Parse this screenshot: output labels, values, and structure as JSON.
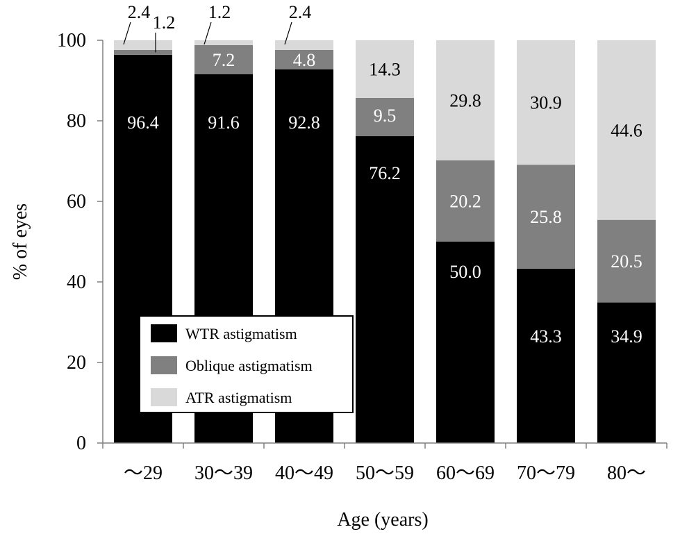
{
  "chart_data": {
    "type": "bar",
    "stacked": true,
    "xlabel": "Age (years)",
    "ylabel": "% of eyes",
    "ylim": [
      0,
      100
    ],
    "yticks": [
      0,
      20,
      40,
      60,
      80,
      100
    ],
    "grid": false,
    "legend_position": "bottom-left",
    "categories": [
      "～29",
      "30～39",
      "40～49",
      "50～59",
      "60～69",
      "70～79",
      "80～"
    ],
    "series": [
      {
        "name": "WTR  astigmatism",
        "color": "#000000",
        "label_color": "#ffffff",
        "values": [
          96.4,
          91.6,
          92.8,
          76.2,
          50.0,
          43.3,
          34.9
        ],
        "labels": [
          "96.4",
          "91.6",
          "92.8",
          "76.2",
          "50.0",
          "43.3",
          "34.9"
        ]
      },
      {
        "name": "Oblique  astigmatism",
        "color": "#808080",
        "label_color": "#ffffff",
        "values": [
          1.2,
          7.2,
          4.8,
          9.5,
          20.2,
          25.8,
          20.5
        ],
        "labels": [
          "1.2",
          "7.2",
          "4.8",
          "9.5",
          "20.2",
          "25.8",
          "20.5"
        ]
      },
      {
        "name": "ATR  astigmatism",
        "color": "#d9d9d9",
        "label_color": "#000000",
        "values": [
          2.4,
          1.2,
          2.4,
          14.3,
          29.8,
          30.9,
          44.6
        ],
        "labels": [
          "2.4",
          "1.2",
          "2.4",
          "14.3",
          "29.8",
          "30.9",
          "44.6"
        ]
      }
    ]
  }
}
